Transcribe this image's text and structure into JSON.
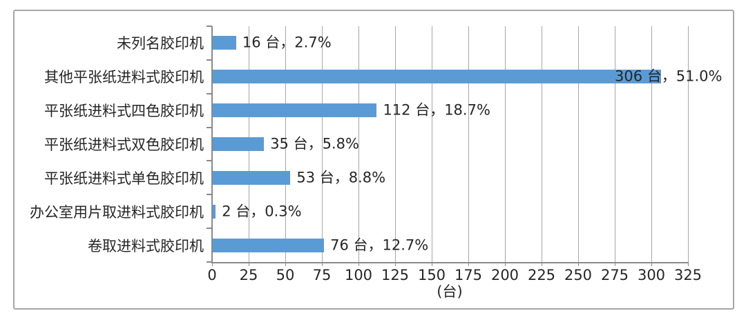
{
  "chart_data": {
    "type": "bar",
    "orientation": "horizontal",
    "title": "",
    "xlabel": "(台)",
    "ylabel": "",
    "unit": "台",
    "xlim": [
      0,
      325
    ],
    "x_ticks": [
      0,
      25,
      50,
      75,
      100,
      125,
      150,
      175,
      200,
      225,
      250,
      275,
      300,
      325
    ],
    "grid": true,
    "legend": "none",
    "categories": [
      "未列名胶印机",
      "其他平张纸进料式胶印机",
      "平张纸进料式四色胶印机",
      "平张纸进料式双色胶印机",
      "平张纸进料式单色胶印机",
      "办公室用片取进料式胶印机",
      "卷取进料式胶印机"
    ],
    "values": [
      16,
      306,
      112,
      35,
      53,
      2,
      76
    ],
    "percents": [
      2.7,
      51.0,
      18.7,
      5.8,
      8.8,
      0.3,
      12.7
    ],
    "value_labels": [
      "16 台，2.7%",
      "306 台，51.0%",
      "112 台，18.7%",
      "35 台，5.8%",
      "53 台，8.8%",
      "2 台，0.3%",
      "76 台，12.7%"
    ]
  },
  "colors": {
    "bar": "#5b9bd5",
    "gridline": "#a6a6a6",
    "axis": "#898989",
    "text": "#262626",
    "frame_border": "#a6a6a6",
    "background": "#ffffff"
  }
}
